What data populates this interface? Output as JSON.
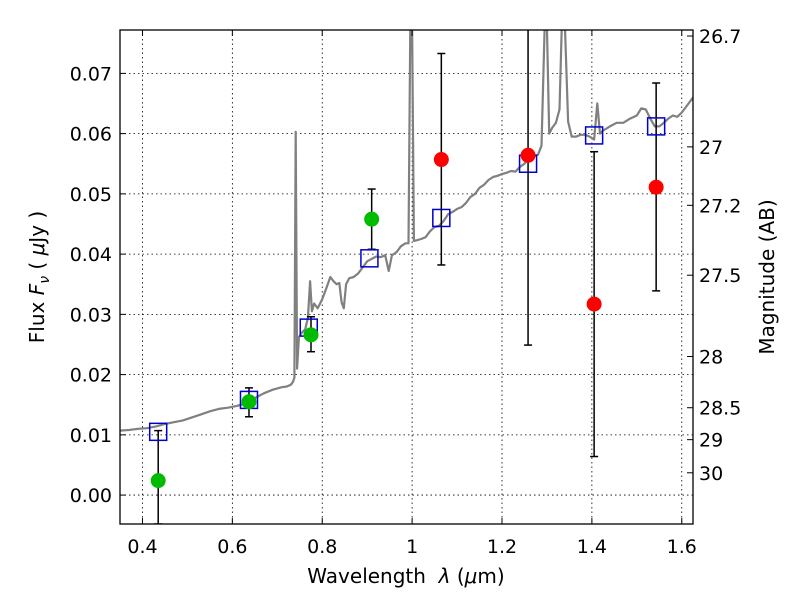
{
  "chart_data": {
    "type": "scatter",
    "title": "",
    "xlabel": "Wavelength  λ (μm)",
    "ylabel": "Flux  Fν  ( μJy )",
    "ylabel_parts": {
      "prefix": "Flux ",
      "symbol": "F",
      "subscript": "ν",
      "paren_open": " ( ",
      "unit_mu": "μ",
      "unit": "Jy",
      "paren_close": " )"
    },
    "xlabel_parts": {
      "prefix": "Wavelength  ",
      "symbol": "λ",
      "paren_open": " (",
      "unit_mu": "μ",
      "unit": "m",
      "paren_close": ")"
    },
    "y2label": "Magnitude (AB)",
    "xlim": [
      0.35,
      1.625
    ],
    "ylim": [
      -0.0048,
      0.0772
    ],
    "grid": true,
    "grid_style": "dotted",
    "x_ticks": [
      {
        "value": 0.4,
        "label": "0.4"
      },
      {
        "value": 0.6,
        "label": "0.6"
      },
      {
        "value": 0.8,
        "label": "0.8"
      },
      {
        "value": 1.0,
        "label": "1"
      },
      {
        "value": 1.2,
        "label": "1.2"
      },
      {
        "value": 1.4,
        "label": "1.4"
      },
      {
        "value": 1.6,
        "label": "1.6"
      }
    ],
    "y_ticks": [
      {
        "value": 0.0,
        "label": "0.00"
      },
      {
        "value": 0.01,
        "label": "0.01"
      },
      {
        "value": 0.02,
        "label": "0.02"
      },
      {
        "value": 0.03,
        "label": "0.03"
      },
      {
        "value": 0.04,
        "label": "0.04"
      },
      {
        "value": 0.05,
        "label": "0.05"
      },
      {
        "value": 0.06,
        "label": "0.06"
      },
      {
        "value": 0.07,
        "label": "0.07"
      }
    ],
    "y2_ticks": [
      {
        "flux": 0.0762,
        "label": "26.7"
      },
      {
        "flux": 0.0578,
        "label": "27"
      },
      {
        "flux": 0.0481,
        "label": "27.2"
      },
      {
        "flux": 0.0365,
        "label": "27.5"
      },
      {
        "flux": 0.023,
        "label": "28"
      },
      {
        "flux": 0.0145,
        "label": "28.5"
      },
      {
        "flux": 0.0092,
        "label": "29"
      },
      {
        "flux": 0.0037,
        "label": "30"
      }
    ],
    "series": [
      {
        "type": "line",
        "color": "#808080",
        "points": [
          [
            0.35,
            0.0107
          ],
          [
            0.37,
            0.0108
          ],
          [
            0.39,
            0.011
          ],
          [
            0.41,
            0.0111
          ],
          [
            0.43,
            0.0114
          ],
          [
            0.45,
            0.0118
          ],
          [
            0.47,
            0.0121
          ],
          [
            0.49,
            0.0124
          ],
          [
            0.51,
            0.0129
          ],
          [
            0.53,
            0.0134
          ],
          [
            0.55,
            0.0139
          ],
          [
            0.57,
            0.0143
          ],
          [
            0.59,
            0.0145
          ],
          [
            0.61,
            0.0148
          ],
          [
            0.63,
            0.0152
          ],
          [
            0.65,
            0.0161
          ],
          [
            0.67,
            0.0169
          ],
          [
            0.69,
            0.0175
          ],
          [
            0.71,
            0.0179
          ],
          [
            0.72,
            0.018
          ],
          [
            0.73,
            0.0183
          ],
          [
            0.735,
            0.0188
          ],
          [
            0.738,
            0.0195
          ],
          [
            0.741,
            0.0603
          ],
          [
            0.744,
            0.021
          ],
          [
            0.748,
            0.0262
          ],
          [
            0.755,
            0.027
          ],
          [
            0.762,
            0.0275
          ],
          [
            0.768,
            0.0294
          ],
          [
            0.773,
            0.0355
          ],
          [
            0.777,
            0.0305
          ],
          [
            0.782,
            0.0318
          ],
          [
            0.79,
            0.031
          ],
          [
            0.8,
            0.0325
          ],
          [
            0.81,
            0.0345
          ],
          [
            0.818,
            0.0362
          ],
          [
            0.825,
            0.0355
          ],
          [
            0.832,
            0.035
          ],
          [
            0.838,
            0.0352
          ],
          [
            0.843,
            0.032
          ],
          [
            0.848,
            0.031
          ],
          [
            0.853,
            0.035
          ],
          [
            0.86,
            0.036
          ],
          [
            0.87,
            0.0362
          ],
          [
            0.88,
            0.0368
          ],
          [
            0.89,
            0.0378
          ],
          [
            0.9,
            0.0388
          ],
          [
            0.91,
            0.0392
          ],
          [
            0.92,
            0.0396
          ],
          [
            0.93,
            0.0395
          ],
          [
            0.94,
            0.0398
          ],
          [
            0.948,
            0.0372
          ],
          [
            0.955,
            0.0398
          ],
          [
            0.965,
            0.0403
          ],
          [
            0.975,
            0.0413
          ],
          [
            0.985,
            0.0418
          ],
          [
            0.992,
            0.0418
          ],
          [
            0.996,
            0.078
          ],
          [
            1.0,
            0.078
          ],
          [
            1.004,
            0.0422
          ],
          [
            1.01,
            0.0423
          ],
          [
            1.02,
            0.0425
          ],
          [
            1.03,
            0.0428
          ],
          [
            1.04,
            0.0438
          ],
          [
            1.05,
            0.0445
          ],
          [
            1.06,
            0.0447
          ],
          [
            1.07,
            0.0455
          ],
          [
            1.08,
            0.0466
          ],
          [
            1.09,
            0.047
          ],
          [
            1.1,
            0.0475
          ],
          [
            1.11,
            0.0478
          ],
          [
            1.12,
            0.0485
          ],
          [
            1.13,
            0.0495
          ],
          [
            1.14,
            0.05
          ],
          [
            1.15,
            0.051
          ],
          [
            1.16,
            0.0515
          ],
          [
            1.17,
            0.0523
          ],
          [
            1.18,
            0.0528
          ],
          [
            1.19,
            0.053
          ],
          [
            1.2,
            0.0533
          ],
          [
            1.21,
            0.0535
          ],
          [
            1.22,
            0.0538
          ],
          [
            1.23,
            0.0537
          ],
          [
            1.24,
            0.0545
          ],
          [
            1.25,
            0.055
          ],
          [
            1.26,
            0.056
          ],
          [
            1.27,
            0.0562
          ],
          [
            1.28,
            0.0565
          ],
          [
            1.288,
            0.058
          ],
          [
            1.295,
            0.078
          ],
          [
            1.3,
            0.078
          ],
          [
            1.305,
            0.06
          ],
          [
            1.312,
            0.061
          ],
          [
            1.32,
            0.0618
          ],
          [
            1.328,
            0.064
          ],
          [
            1.333,
            0.078
          ],
          [
            1.34,
            0.078
          ],
          [
            1.347,
            0.062
          ],
          [
            1.355,
            0.0595
          ],
          [
            1.365,
            0.0595
          ],
          [
            1.375,
            0.0598
          ],
          [
            1.385,
            0.0598
          ],
          [
            1.395,
            0.0595
          ],
          [
            1.405,
            0.059
          ],
          [
            1.412,
            0.065
          ],
          [
            1.418,
            0.06
          ],
          [
            1.425,
            0.0605
          ],
          [
            1.44,
            0.0612
          ],
          [
            1.455,
            0.0618
          ],
          [
            1.47,
            0.0618
          ],
          [
            1.485,
            0.0625
          ],
          [
            1.5,
            0.063
          ],
          [
            1.51,
            0.0642
          ],
          [
            1.52,
            0.064
          ],
          [
            1.53,
            0.0625
          ],
          [
            1.54,
            0.0612
          ],
          [
            1.55,
            0.0612
          ],
          [
            1.56,
            0.0618
          ],
          [
            1.57,
            0.0625
          ],
          [
            1.58,
            0.063
          ],
          [
            1.59,
            0.0628
          ],
          [
            1.6,
            0.0635
          ],
          [
            1.61,
            0.0645
          ],
          [
            1.625,
            0.066
          ]
        ]
      },
      {
        "type": "scatter",
        "marker": "open-square",
        "color": "#0000cc",
        "points": [
          [
            0.435,
            0.0105
          ],
          [
            0.637,
            0.0158
          ],
          [
            0.77,
            0.0278
          ],
          [
            0.905,
            0.0393
          ],
          [
            1.065,
            0.046
          ],
          [
            1.258,
            0.055
          ],
          [
            1.405,
            0.0597
          ],
          [
            1.543,
            0.0612
          ]
        ]
      },
      {
        "type": "scatter",
        "marker": "circle",
        "color": "#00bb00",
        "points": [
          [
            0.435,
            0.0024
          ],
          [
            0.637,
            0.0155
          ],
          [
            0.775,
            0.0266
          ],
          [
            0.91,
            0.0458
          ]
        ]
      },
      {
        "type": "scatter",
        "marker": "circle",
        "color": "#ff0000",
        "points": [
          [
            1.065,
            0.0557
          ],
          [
            1.258,
            0.0564
          ],
          [
            1.405,
            0.0317
          ],
          [
            1.543,
            0.0511
          ]
        ]
      },
      {
        "type": "errorbars",
        "color": "#000000",
        "bars": [
          {
            "x": 0.435,
            "low": -0.0048,
            "high": 0.0107
          },
          {
            "x": 0.637,
            "low": 0.013,
            "high": 0.0178
          },
          {
            "x": 0.775,
            "low": 0.0238,
            "high": 0.0296
          },
          {
            "x": 0.91,
            "low": 0.0408,
            "high": 0.0508
          },
          {
            "x": 1.065,
            "low": 0.0382,
            "high": 0.0733
          },
          {
            "x": 1.258,
            "low": 0.0249,
            "high": 0.0795
          },
          {
            "x": 1.405,
            "low": 0.0064,
            "high": 0.057
          },
          {
            "x": 1.543,
            "low": 0.0339,
            "high": 0.0684
          }
        ]
      }
    ]
  }
}
